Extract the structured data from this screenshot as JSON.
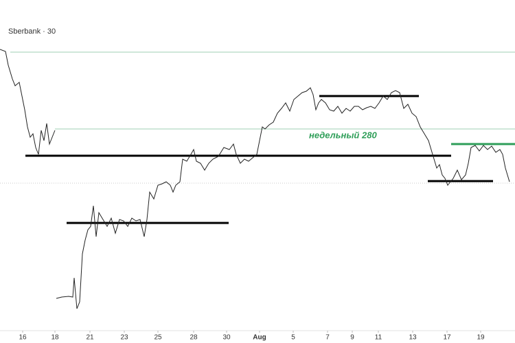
{
  "chart_data": {
    "type": "line",
    "title": "Sberbank · 30",
    "annotation": "недельный 280",
    "annotation_color": "#2e9e58",
    "xlim": [
      0,
      750
    ],
    "ylim": [
      251.8,
      300
    ],
    "xticks": [
      {
        "value": 33,
        "label": "16"
      },
      {
        "value": 80,
        "label": "18"
      },
      {
        "value": 131,
        "label": "21"
      },
      {
        "value": 181,
        "label": "23"
      },
      {
        "value": 230,
        "label": "25"
      },
      {
        "value": 282,
        "label": "28"
      },
      {
        "value": 330,
        "label": "30"
      },
      {
        "value": 378,
        "label": "Aug"
      },
      {
        "value": 427,
        "label": "5"
      },
      {
        "value": 477,
        "label": "7"
      },
      {
        "value": 513,
        "label": "9"
      },
      {
        "value": 551,
        "label": "11"
      },
      {
        "value": 601,
        "label": "13"
      },
      {
        "value": 651,
        "label": "17"
      },
      {
        "value": 700,
        "label": "19"
      }
    ],
    "x": [
      0,
      8,
      12,
      18,
      22,
      28,
      32,
      36,
      40,
      44,
      48,
      52,
      56,
      60,
      64,
      68,
      72,
      76,
      80,
      81,
      82,
      90,
      100,
      106,
      108,
      112,
      116,
      120,
      124,
      128,
      132,
      136,
      140,
      144,
      150,
      156,
      162,
      168,
      174,
      180,
      186,
      192,
      198,
      204,
      210,
      214,
      218,
      224,
      230,
      236,
      242,
      248,
      252,
      256,
      262,
      266,
      272,
      278,
      282,
      286,
      292,
      298,
      304,
      310,
      318,
      326,
      334,
      340,
      344,
      350,
      356,
      362,
      368,
      374,
      378,
      382,
      386,
      392,
      398,
      404,
      410,
      416,
      422,
      428,
      434,
      440,
      446,
      452,
      456,
      460,
      464,
      468,
      474,
      480,
      486,
      492,
      498,
      504,
      510,
      516,
      522,
      528,
      534,
      540,
      546,
      552,
      558,
      564,
      570,
      576,
      582,
      588,
      594,
      600,
      606,
      612,
      618,
      624,
      630,
      636,
      640,
      644,
      648,
      652,
      656,
      660,
      666,
      672,
      678,
      682,
      686,
      692,
      698,
      704,
      710,
      716,
      722,
      728,
      732,
      736,
      742
    ],
    "series": [
      {
        "color": "#222222",
        "values": [
          292.8,
          292.5,
          290.5,
          288.5,
          287.5,
          288,
          286,
          284,
          281.5,
          280,
          280.5,
          278.5,
          277.5,
          281,
          279.5,
          282,
          279,
          280,
          281,
          null,
          256.5,
          256.7,
          256.8,
          256.7,
          259.5,
          255,
          256,
          263,
          265,
          266.5,
          267,
          270,
          265.5,
          269,
          268,
          267,
          268.2,
          266,
          268,
          267.8,
          267,
          268.2,
          267.8,
          268,
          265.5,
          268,
          272,
          271,
          273,
          273.2,
          273.5,
          273,
          272,
          273,
          273.5,
          276.8,
          276.5,
          277.5,
          278.2,
          276.5,
          276.2,
          275.2,
          276.2,
          276.8,
          277.2,
          278.5,
          278.2,
          279,
          277.5,
          276.2,
          276.8,
          276.5,
          277,
          277.5,
          279.5,
          281.5,
          281.2,
          281.8,
          282.2,
          283.5,
          284.2,
          285,
          283.8,
          285.5,
          286,
          286.5,
          286.7,
          287.2,
          286.2,
          284,
          285,
          285.5,
          285,
          284,
          283.8,
          284.5,
          283.5,
          284.2,
          283.8,
          284.5,
          284.5,
          284,
          284.3,
          284.5,
          284.2,
          285,
          286,
          285.5,
          286.5,
          286.8,
          286.5,
          284.2,
          284.8,
          283.5,
          283,
          281.5,
          280.5,
          279.5,
          277.5,
          275.5,
          276,
          274.5,
          274,
          273,
          273.5,
          274,
          275.2,
          273.8,
          274.5,
          276.2,
          278.5,
          278.8,
          278,
          278.8,
          278.2,
          278.7,
          277.8,
          278.2,
          277.5,
          275.5,
          273.5
        ]
      }
    ],
    "levels": [
      {
        "value": 292.4,
        "x": [
          15,
          750
        ],
        "color": "#9fcfb3",
        "width": 1
      },
      {
        "value": 281.2,
        "x": [
          80,
          750
        ],
        "color": "#9fcfb3",
        "width": 1
      },
      {
        "value": 273.3,
        "x": [
          0,
          750
        ],
        "color": "#c8c8c8",
        "width": 1,
        "dash": true
      },
      {
        "value": 277.3,
        "x": [
          37,
          657
        ],
        "color": "#000000",
        "width": 3
      },
      {
        "value": 267.5,
        "x": [
          97,
          333
        ],
        "color": "#000000",
        "width": 3
      },
      {
        "value": 286,
        "x": [
          465,
          610
        ],
        "color": "#000000",
        "width": 3
      },
      {
        "value": 273.6,
        "x": [
          623,
          718
        ],
        "color": "#000000",
        "width": 3
      },
      {
        "value": 279,
        "x": [
          657,
          750
        ],
        "color": "#2e9e58",
        "width": 3
      }
    ]
  }
}
